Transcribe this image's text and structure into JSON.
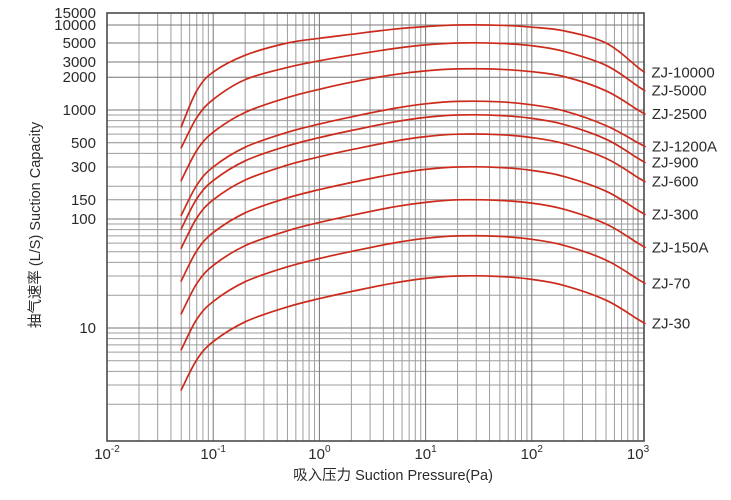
{
  "chart_data": {
    "type": "line",
    "title": "",
    "xlabel": "吸入压力 Suction Pressure(Pa)",
    "ylabel": "抽气速率 (L/S) Suction Capacity",
    "x_axis": {
      "scale": "log",
      "range": [
        0.01,
        1000
      ],
      "decade_exponents": [
        -2,
        -1,
        0,
        1,
        2,
        3
      ],
      "tick_label_base": "10",
      "minor_multipliers": [
        2,
        3,
        4,
        5,
        6,
        7,
        8,
        9
      ],
      "grid": true
    },
    "y_axis": {
      "scale": "log, compressed above 2000",
      "range": [
        1,
        15000
      ],
      "labeled_ticks": [
        15000,
        10000,
        5000,
        3000,
        2000,
        1000,
        500,
        300,
        150,
        100,
        10
      ],
      "minor_ticks": [
        900,
        800,
        700,
        600,
        400,
        200,
        90,
        80,
        70,
        60,
        50,
        40,
        30,
        20,
        9,
        8,
        7,
        6,
        5,
        4,
        3,
        2
      ],
      "grid": true
    },
    "legend_position": "labels at right edge of curves",
    "pressures_pa": [
      0.05,
      0.07,
      0.1,
      0.2,
      0.5,
      1,
      2,
      5,
      10,
      20,
      50,
      100,
      200,
      500,
      1000
    ],
    "series": [
      {
        "name": "ZJ-10000",
        "speeds_ls": [
          700,
          1500,
          2300,
          3600,
          5000,
          6000,
          7000,
          8500,
          9400,
          10000,
          9900,
          9200,
          8000,
          5000,
          2600
        ]
      },
      {
        "name": "ZJ-5000",
        "speeds_ls": [
          450,
          850,
          1250,
          1900,
          2600,
          3100,
          3600,
          4300,
          4750,
          5000,
          4950,
          4650,
          4000,
          2750,
          1650
        ]
      },
      {
        "name": "ZJ-2500",
        "speeds_ls": [
          225,
          425,
          625,
          950,
          1300,
          1550,
          1800,
          2150,
          2375,
          2500,
          2475,
          2325,
          2050,
          1500,
          1000
        ]
      },
      {
        "name": "ZJ-1200A",
        "speeds_ls": [
          108,
          204,
          300,
          456,
          624,
          744,
          864,
          1032,
          1140,
          1200,
          1188,
          1116,
          984,
          720,
          500
        ]
      },
      {
        "name": "ZJ-900",
        "speeds_ls": [
          81,
          153,
          225,
          342,
          468,
          558,
          648,
          774,
          855,
          900,
          891,
          837,
          738,
          540,
          360
        ]
      },
      {
        "name": "ZJ-600",
        "speeds_ls": [
          54,
          102,
          150,
          228,
          312,
          372,
          432,
          516,
          570,
          600,
          594,
          558,
          492,
          360,
          240
        ]
      },
      {
        "name": "ZJ-300",
        "speeds_ls": [
          27,
          51,
          75,
          114,
          156,
          186,
          216,
          258,
          285,
          300,
          297,
          279,
          246,
          180,
          120
        ]
      },
      {
        "name": "ZJ-150A",
        "speeds_ls": [
          13.5,
          25.5,
          37.5,
          57,
          78,
          93,
          108,
          129,
          142,
          150,
          148,
          140,
          123,
          90,
          60
        ]
      },
      {
        "name": "ZJ-70",
        "speeds_ls": [
          6.3,
          12,
          17.5,
          26.6,
          36.4,
          43.4,
          50.4,
          60.2,
          66.5,
          70,
          69.3,
          65.1,
          57.4,
          42,
          28
        ]
      },
      {
        "name": "ZJ-30",
        "speeds_ls": [
          2.7,
          5.1,
          7.5,
          11.4,
          15.6,
          18.6,
          21.6,
          25.8,
          28.5,
          30,
          29.7,
          27.9,
          24.6,
          18,
          12
        ]
      }
    ]
  },
  "colors": {
    "background": "#ffffff",
    "curve": "#cc2b1c",
    "grid_minor": "#9e9e9e",
    "grid_mid": "#8f8f8f",
    "grid_major": "#777777",
    "frame": "#4a4a4a",
    "text": "#2b2b2b"
  }
}
